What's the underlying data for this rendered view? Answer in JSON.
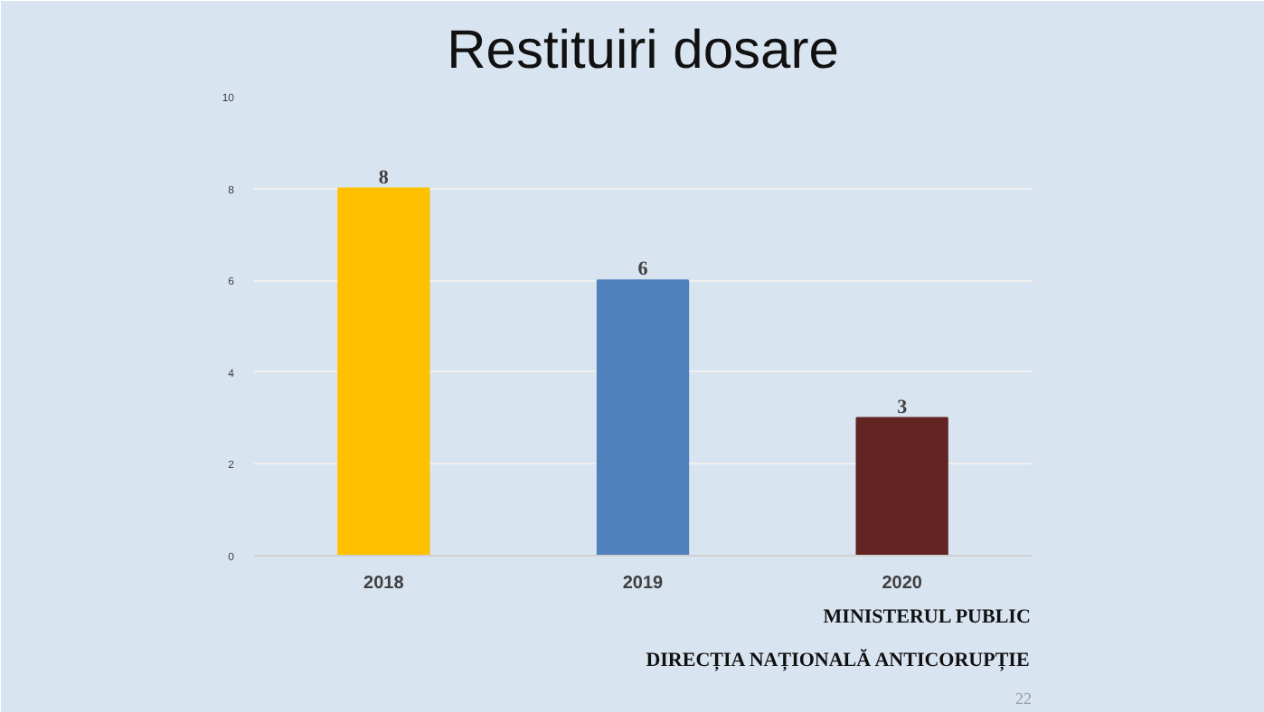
{
  "chart_data": {
    "type": "bar",
    "title": "Restituiri dosare",
    "categories": [
      "2018",
      "2019",
      "2020"
    ],
    "values": [
      8,
      6,
      3
    ],
    "colors": [
      "#ffc000",
      "#4f81bd",
      "#632523"
    ],
    "ylim": [
      0,
      10
    ],
    "yticks": [
      0,
      2,
      4,
      6,
      8,
      10
    ],
    "grid": "y",
    "data_labels": true,
    "annotations": [
      "MINISTERUL PUBLIC",
      "DIRECȚIA NAȚIONALĂ ANTICORUPȚIE",
      "22"
    ]
  }
}
